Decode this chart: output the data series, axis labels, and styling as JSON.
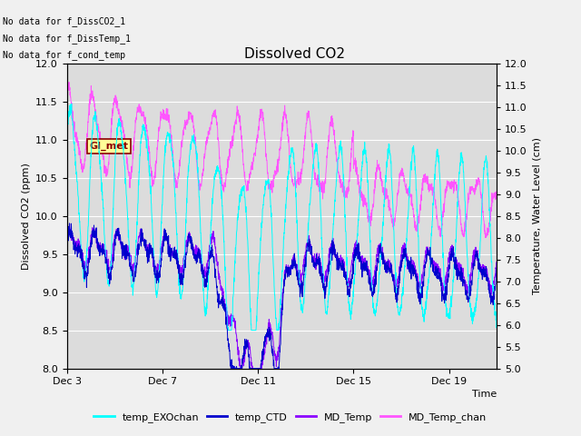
{
  "title": "Dissolved CO2",
  "xlabel": "Time",
  "ylabel_left": "Dissolved CO2 (ppm)",
  "ylabel_right": "Temperature, Water Level (cm)",
  "ylim_left": [
    8.0,
    12.0
  ],
  "ylim_right": [
    5.0,
    12.0
  ],
  "yticks_left": [
    8.0,
    8.5,
    9.0,
    9.5,
    10.0,
    10.5,
    11.0,
    11.5,
    12.0
  ],
  "yticks_right": [
    5.0,
    5.5,
    6.0,
    6.5,
    7.0,
    7.5,
    8.0,
    8.5,
    9.0,
    9.5,
    10.0,
    10.5,
    11.0,
    11.5,
    12.0
  ],
  "xtick_positions": [
    0,
    4,
    8,
    12,
    16
  ],
  "xtick_labels": [
    "Dec 3",
    "Dec 7",
    "Dec 11",
    "Dec 15",
    "Dec 19"
  ],
  "xlim": [
    0,
    18
  ],
  "no_data_texts": [
    "No data for f_DissCO2_1",
    "No data for f_DissTemp_1",
    "No data for f_cond_temp"
  ],
  "gi_met_label": "GI_met",
  "colors": {
    "temp_EXOchan": "#00FFFF",
    "temp_CTD": "#0000CD",
    "MD_Temp": "#8B00FF",
    "MD_Temp_chan": "#FF55FF"
  },
  "legend_labels": [
    "temp_EXOchan",
    "temp_CTD",
    "MD_Temp",
    "MD_Temp_chan"
  ],
  "fig_bg_color": "#F0F0F0",
  "plot_bg_color": "#DCDCDC",
  "grid_color": "#FFFFFF"
}
